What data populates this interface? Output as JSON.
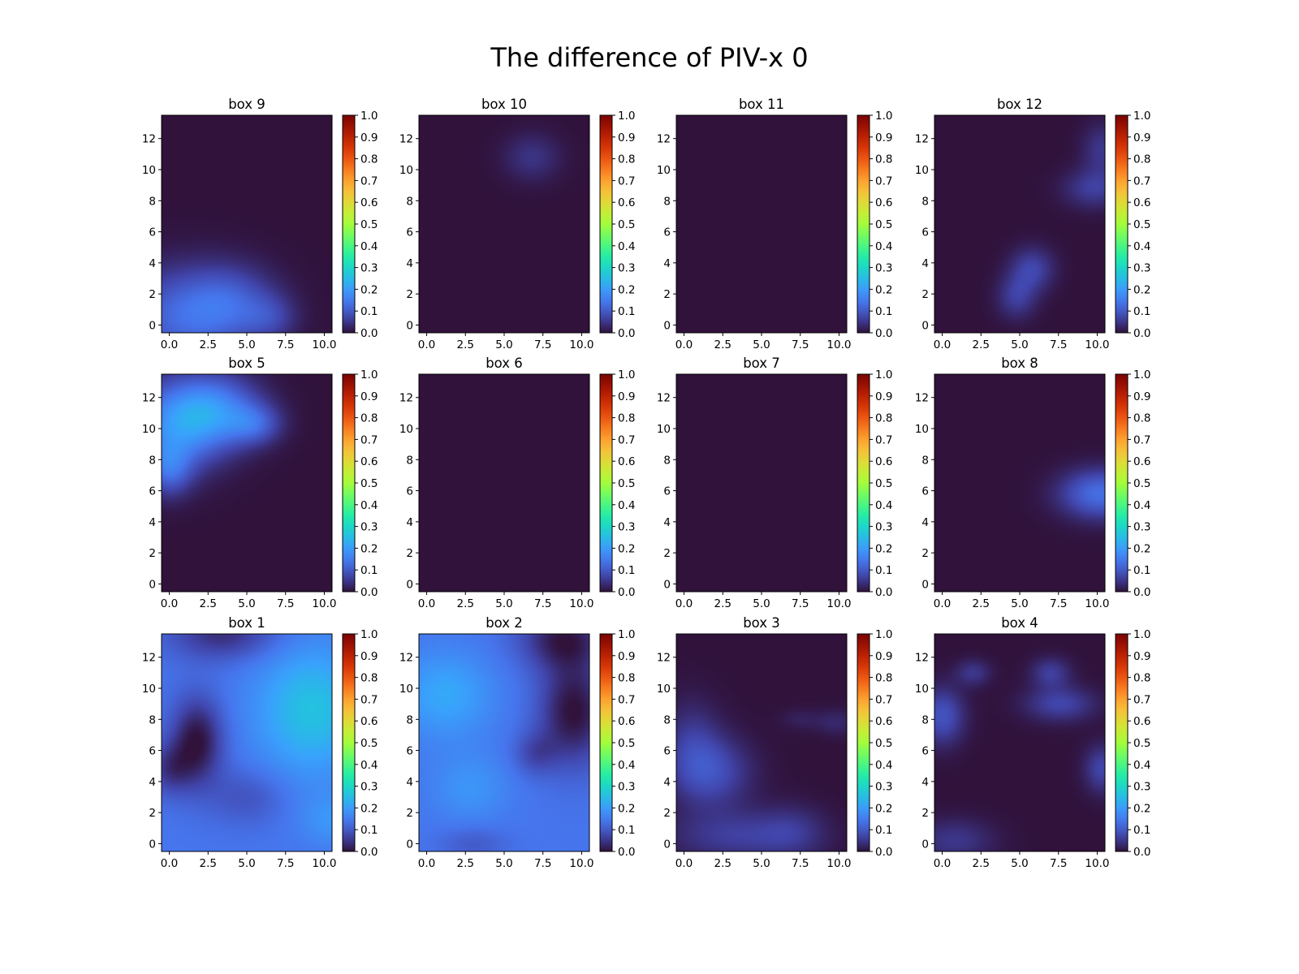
{
  "title": "The difference of PIV-x 0",
  "chart_data": {
    "type": "heatmap",
    "colormap": "turbo",
    "grid": false,
    "layout": {
      "rows": 3,
      "cols": 4
    },
    "x_ticks": [
      "0.0",
      "2.5",
      "5.0",
      "7.5",
      "10.0"
    ],
    "y_ticks": [
      "0",
      "2",
      "4",
      "6",
      "8",
      "10",
      "12"
    ],
    "colorbar_ticks": [
      "0.0",
      "0.1",
      "0.2",
      "0.3",
      "0.4",
      "0.5",
      "0.6",
      "0.7",
      "0.8",
      "0.9",
      "1.0"
    ],
    "xlim": [
      -0.5,
      10.5
    ],
    "ylim": [
      -0.5,
      13.5
    ],
    "clim": [
      0.0,
      1.0
    ],
    "panels": [
      {
        "title": "box 9",
        "blobs": [
          {
            "x": 1.0,
            "y": 0.5,
            "sx": 3.0,
            "sy": 2.2,
            "v": 0.12
          },
          {
            "x": 4.0,
            "y": 1.5,
            "sx": 2.0,
            "sy": 1.6,
            "v": 0.07
          },
          {
            "x": 6.5,
            "y": 0.5,
            "sx": 1.2,
            "sy": 1.0,
            "v": 0.05
          }
        ]
      },
      {
        "title": "box 10",
        "blobs": [
          {
            "x": 6.8,
            "y": 10.8,
            "sx": 1.3,
            "sy": 1.1,
            "v": 0.045
          }
        ]
      },
      {
        "title": "box 11",
        "blobs": []
      },
      {
        "title": "box 12",
        "blobs": [
          {
            "x": 5.8,
            "y": 3.6,
            "sx": 1.0,
            "sy": 1.0,
            "v": 0.07
          },
          {
            "x": 4.8,
            "y": 1.8,
            "sx": 0.9,
            "sy": 1.0,
            "v": 0.06
          },
          {
            "x": 9.8,
            "y": 8.8,
            "sx": 1.4,
            "sy": 0.9,
            "v": 0.06
          },
          {
            "x": 10.3,
            "y": 11.3,
            "sx": 0.9,
            "sy": 1.2,
            "v": 0.05
          }
        ]
      },
      {
        "title": "box 5",
        "blobs": [
          {
            "x": 0.4,
            "y": 10.2,
            "sx": 2.2,
            "sy": 2.0,
            "v": 0.16
          },
          {
            "x": 3.0,
            "y": 11.2,
            "sx": 2.0,
            "sy": 1.6,
            "v": 0.14
          },
          {
            "x": 5.5,
            "y": 10.3,
            "sx": 1.2,
            "sy": 0.9,
            "v": 0.09
          },
          {
            "x": 0.0,
            "y": 7.4,
            "sx": 1.0,
            "sy": 1.2,
            "v": 0.1
          }
        ]
      },
      {
        "title": "box 6",
        "blobs": []
      },
      {
        "title": "box 7",
        "blobs": []
      },
      {
        "title": "box 8",
        "blobs": [
          {
            "x": 10.2,
            "y": 5.8,
            "sx": 1.8,
            "sy": 1.1,
            "v": 0.13
          }
        ]
      },
      {
        "title": "box 1",
        "blobs": [
          {
            "x": 0,
            "y": 0,
            "sx": 100,
            "sy": 100,
            "v": 0.14
          },
          {
            "x": 9.2,
            "y": 8.6,
            "sx": 2.6,
            "sy": 3.0,
            "v": 0.12
          },
          {
            "x": 1.8,
            "y": 6.6,
            "sx": 1.2,
            "sy": 2.0,
            "v": -0.14
          },
          {
            "x": 0.0,
            "y": 4.8,
            "sx": 1.0,
            "sy": 1.2,
            "v": -0.08
          },
          {
            "x": 3.5,
            "y": 13.5,
            "sx": 2.5,
            "sy": 1.2,
            "v": -0.1
          },
          {
            "x": 10.5,
            "y": 1.5,
            "sx": 1.5,
            "sy": 1.2,
            "v": 0.05
          },
          {
            "x": 5.0,
            "y": 3.0,
            "sx": 1.8,
            "sy": 1.3,
            "v": -0.05
          }
        ]
      },
      {
        "title": "box 2",
        "blobs": [
          {
            "x": 0,
            "y": 0,
            "sx": 100,
            "sy": 100,
            "v": 0.14
          },
          {
            "x": 1.2,
            "y": 9.6,
            "sx": 2.2,
            "sy": 2.0,
            "v": 0.08
          },
          {
            "x": 2.8,
            "y": 3.6,
            "sx": 1.8,
            "sy": 1.6,
            "v": 0.05
          },
          {
            "x": 9.5,
            "y": 8.5,
            "sx": 1.6,
            "sy": 2.4,
            "v": -0.14
          },
          {
            "x": 8.8,
            "y": 13.2,
            "sx": 2.0,
            "sy": 1.4,
            "v": -0.12
          },
          {
            "x": 7.0,
            "y": 5.8,
            "sx": 1.0,
            "sy": 1.0,
            "v": -0.06
          },
          {
            "x": 3.0,
            "y": 0.0,
            "sx": 1.5,
            "sy": 0.8,
            "v": -0.04
          }
        ]
      },
      {
        "title": "box 3",
        "blobs": [
          {
            "x": 1.8,
            "y": 4.6,
            "sx": 1.8,
            "sy": 1.6,
            "v": 0.08
          },
          {
            "x": 0.5,
            "y": 6.5,
            "sx": 1.3,
            "sy": 2.0,
            "v": 0.05
          },
          {
            "x": 3.5,
            "y": 0.5,
            "sx": 3.2,
            "sy": 1.2,
            "v": 0.06
          },
          {
            "x": 7.0,
            "y": 0.8,
            "sx": 1.5,
            "sy": 1.2,
            "v": 0.035
          },
          {
            "x": 9.8,
            "y": 7.8,
            "sx": 0.9,
            "sy": 0.6,
            "v": 0.03
          },
          {
            "x": 7.5,
            "y": 8.0,
            "sx": 0.9,
            "sy": 0.5,
            "v": 0.02
          }
        ]
      },
      {
        "title": "box 4",
        "blobs": [
          {
            "x": 0.0,
            "y": 8.2,
            "sx": 1.0,
            "sy": 1.3,
            "v": 0.09
          },
          {
            "x": 7.6,
            "y": 9.0,
            "sx": 1.6,
            "sy": 0.8,
            "v": 0.07
          },
          {
            "x": 7.0,
            "y": 11.0,
            "sx": 0.9,
            "sy": 0.7,
            "v": 0.06
          },
          {
            "x": 2.0,
            "y": 11.0,
            "sx": 0.8,
            "sy": 0.6,
            "v": 0.05
          },
          {
            "x": 10.3,
            "y": 4.8,
            "sx": 0.8,
            "sy": 1.1,
            "v": 0.07
          },
          {
            "x": 0.8,
            "y": 0.2,
            "sx": 1.8,
            "sy": 1.0,
            "v": 0.05
          }
        ]
      }
    ]
  }
}
